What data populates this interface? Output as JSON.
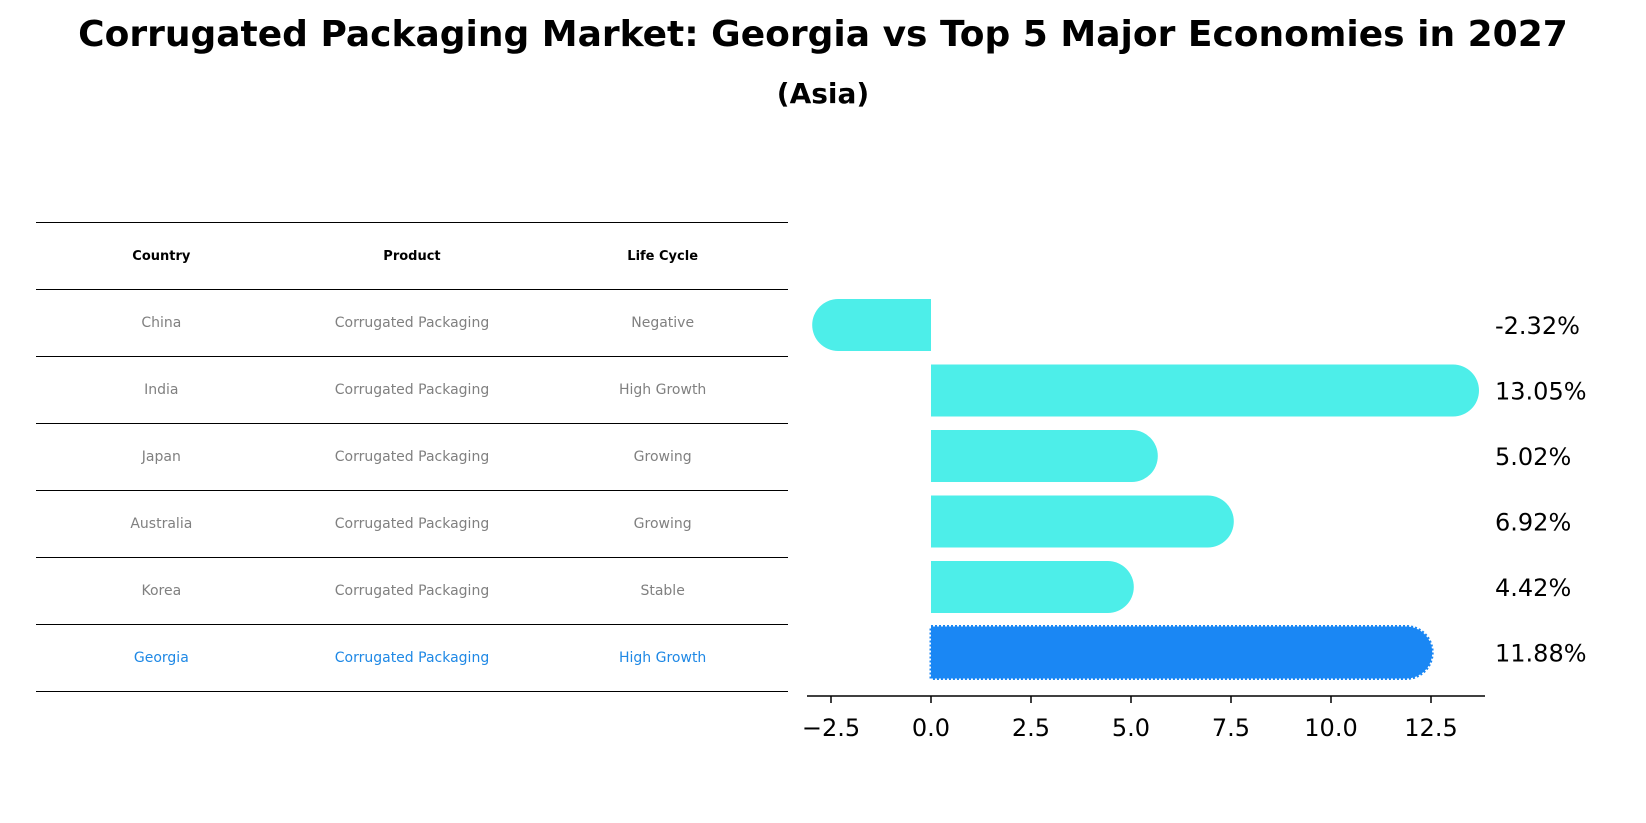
{
  "title": "Corrugated Packaging Market: Georgia vs Top 5 Major Economies in 2027",
  "subtitle": "(Asia)",
  "table": {
    "headers": [
      "Country",
      "Product",
      "Life Cycle"
    ],
    "rows": [
      {
        "country": "China",
        "product": "Corrugated Packaging",
        "life_cycle": "Negative"
      },
      {
        "country": "India",
        "product": "Corrugated Packaging",
        "life_cycle": "High Growth"
      },
      {
        "country": "Japan",
        "product": "Corrugated Packaging",
        "life_cycle": "Growing"
      },
      {
        "country": "Australia",
        "product": "Corrugated Packaging",
        "life_cycle": "Growing"
      },
      {
        "country": "Korea",
        "product": "Corrugated Packaging",
        "life_cycle": "Stable"
      },
      {
        "country": "Georgia",
        "product": "Corrugated Packaging",
        "life_cycle": "High Growth"
      }
    ],
    "highlight_row": "Georgia",
    "text_color": "#808080",
    "highlight_color": "#1e88e5"
  },
  "chart_data": {
    "type": "bar",
    "orientation": "horizontal",
    "categories": [
      "China",
      "India",
      "Japan",
      "Australia",
      "Korea",
      "Georgia"
    ],
    "values": [
      -2.32,
      13.05,
      5.02,
      6.92,
      4.42,
      11.88
    ],
    "value_labels": [
      "-2.32%",
      "13.05%",
      "5.02%",
      "6.92%",
      "4.42%",
      "11.88%"
    ],
    "xlim": [
      -3.1,
      13.85
    ],
    "xticks": [
      -2.5,
      0.0,
      2.5,
      5.0,
      7.5,
      10.0,
      12.5
    ],
    "xtick_labels": [
      "−2.5",
      "0.0",
      "2.5",
      "5.0",
      "7.5",
      "10.0",
      "12.5"
    ],
    "bar_color": "#4deee9",
    "highlight_color": "#1a87f4",
    "highlight_category": "Georgia",
    "grid": false
  }
}
